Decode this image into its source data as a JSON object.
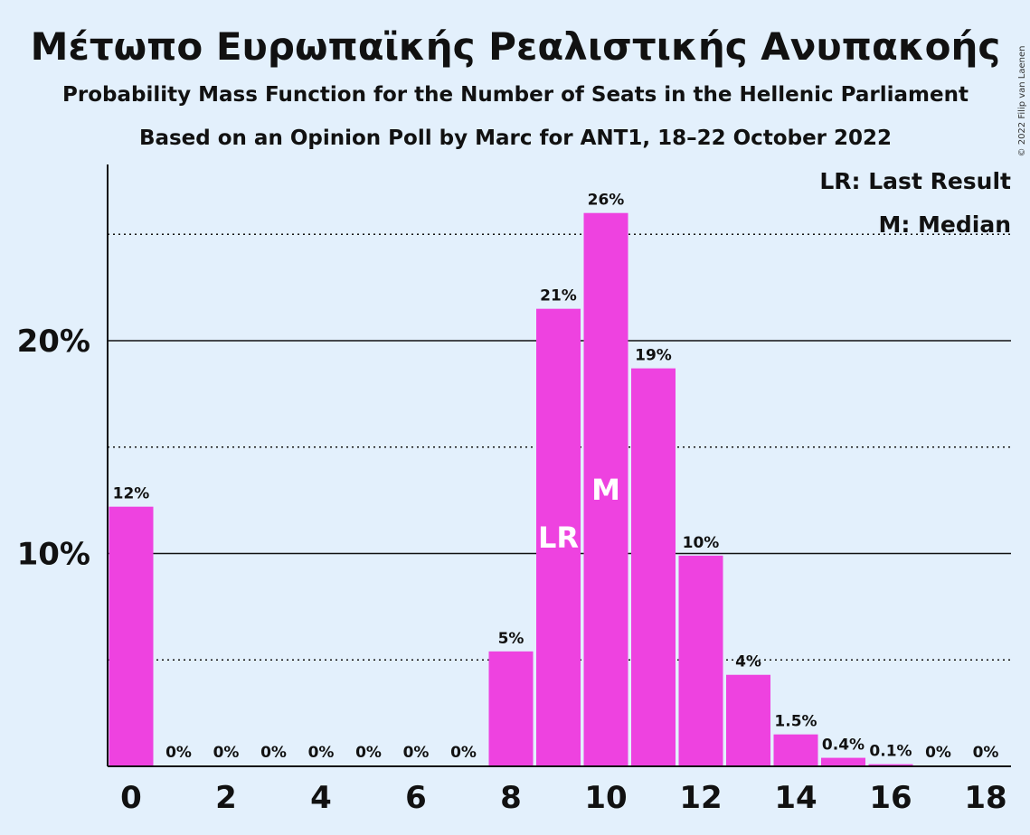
{
  "title": "Μέτωπο Ευρωπαϊκής Ρεαλιστικής Ανυπακοής",
  "subtitle1": "Probability Mass Function for the Number of Seats in the Hellenic Parliament",
  "subtitle2": "Based on an Opinion Poll by Marc for ANT1, 18–22 October 2022",
  "copyright": "© 2022 Filip van Laenen",
  "legend": {
    "last_result": "LR: Last Result",
    "median": "M: Median"
  },
  "colors": {
    "background": "#e3f0fc",
    "bar": "#ee42e0",
    "text": "#111111"
  },
  "chart_data": {
    "type": "bar",
    "x": [
      0,
      1,
      2,
      3,
      4,
      5,
      6,
      7,
      8,
      9,
      10,
      11,
      12,
      13,
      14,
      15,
      16,
      17,
      18
    ],
    "values": [
      12.2,
      0,
      0,
      0,
      0,
      0,
      0,
      0,
      5.4,
      21.5,
      26.0,
      18.7,
      9.9,
      4.3,
      1.5,
      0.4,
      0.1,
      0,
      0
    ],
    "data_labels": [
      "12%",
      "0%",
      "0%",
      "0%",
      "0%",
      "0%",
      "0%",
      "0%",
      "5%",
      "21%",
      "26%",
      "19%",
      "10%",
      "4%",
      "1.5%",
      "0.4%",
      "0.1%",
      "0%",
      "0%"
    ],
    "x_tick_labels": [
      "0",
      "2",
      "4",
      "6",
      "8",
      "10",
      "12",
      "14",
      "16",
      "18"
    ],
    "x_tick_values": [
      0,
      2,
      4,
      6,
      8,
      10,
      12,
      14,
      16,
      18
    ],
    "y_ticks": [
      {
        "value": 10,
        "label": "10%"
      },
      {
        "value": 20,
        "label": "20%"
      }
    ],
    "y_minor_gridlines": [
      5,
      15,
      25
    ],
    "ylim": [
      0,
      28.3
    ],
    "last_result_seat": 9,
    "last_result_label": "LR",
    "median_seat": 10,
    "median_label": "M",
    "title": "Μέτωπο Ευρωπαϊκής Ρεαλιστικής Ανυπακοής",
    "xlabel": "",
    "ylabel": "",
    "grid": true,
    "legend_position": "top-right"
  }
}
